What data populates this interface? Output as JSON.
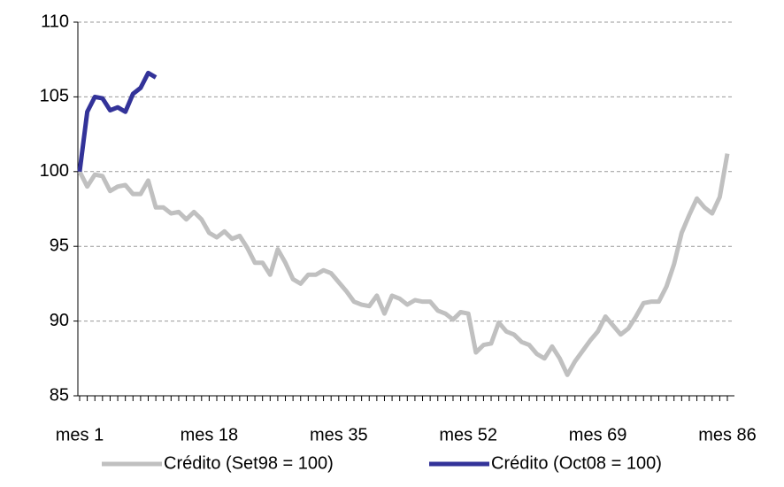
{
  "chart_data": {
    "type": "line",
    "categories": [
      "mes 1",
      null,
      null,
      null,
      null,
      null,
      null,
      null,
      null,
      null,
      null,
      null,
      null,
      null,
      null,
      null,
      null,
      "mes 18",
      null,
      null,
      null,
      null,
      null,
      null,
      null,
      null,
      null,
      null,
      null,
      null,
      null,
      null,
      null,
      null,
      "mes 35",
      null,
      null,
      null,
      null,
      null,
      null,
      null,
      null,
      null,
      null,
      null,
      null,
      null,
      null,
      null,
      null,
      "mes 52",
      null,
      null,
      null,
      null,
      null,
      null,
      null,
      null,
      null,
      null,
      null,
      null,
      null,
      null,
      null,
      null,
      "mes 69",
      null,
      null,
      null,
      null,
      null,
      null,
      null,
      null,
      null,
      null,
      null,
      null,
      null,
      null,
      null,
      null,
      "mes 86"
    ],
    "series": [
      {
        "name": "Crédito (Set98 = 100)",
        "color": "#c0c0c0",
        "values": [
          100,
          99.0,
          99.8,
          99.7,
          98.7,
          99.0,
          99.1,
          98.5,
          98.5,
          99.4,
          97.6,
          97.6,
          97.2,
          97.3,
          96.8,
          97.3,
          96.8,
          95.9,
          95.6,
          96.0,
          95.5,
          95.7,
          94.9,
          93.9,
          93.9,
          93.1,
          94.8,
          93.9,
          92.8,
          92.5,
          93.1,
          93.1,
          93.4,
          93.2,
          92.6,
          92.0,
          91.3,
          91.1,
          91.0,
          91.7,
          90.5,
          91.7,
          91.5,
          91.1,
          91.4,
          91.3,
          91.3,
          90.7,
          90.5,
          90.1,
          90.6,
          90.5,
          87.9,
          88.4,
          88.5,
          89.9,
          89.3,
          89.1,
          88.6,
          88.4,
          87.8,
          87.5,
          88.3,
          87.5,
          86.4,
          87.3,
          88.0,
          88.7,
          89.3,
          90.3,
          89.7,
          89.1,
          89.5,
          90.3,
          91.2,
          91.3,
          91.3,
          92.3,
          93.8,
          95.9,
          97.1,
          98.2,
          97.6,
          97.2,
          98.3,
          101.2
        ]
      },
      {
        "name": "Crédito (Oct08 = 100)",
        "color": "#333399",
        "values": [
          100,
          104.0,
          105.0,
          104.9,
          104.1,
          104.3,
          104.0,
          105.2,
          105.6,
          106.6,
          106.3,
          null,
          null,
          null,
          null,
          null,
          null,
          null,
          null,
          null,
          null,
          null,
          null,
          null,
          null,
          null,
          null,
          null,
          null,
          null,
          null,
          null,
          null,
          null,
          null,
          null,
          null,
          null,
          null,
          null,
          null,
          null,
          null,
          null,
          null,
          null,
          null,
          null,
          null,
          null,
          null,
          null,
          null,
          null,
          null,
          null,
          null,
          null,
          null,
          null,
          null,
          null,
          null,
          null,
          null,
          null,
          null,
          null,
          null,
          null,
          null,
          null,
          null,
          null,
          null,
          null,
          null,
          null,
          null,
          null,
          null,
          null,
          null,
          null,
          null,
          null
        ]
      }
    ],
    "ylim": [
      85,
      110
    ],
    "yticks": [
      85,
      90,
      95,
      100,
      105,
      110
    ],
    "grid": true,
    "legend": "bottom"
  }
}
